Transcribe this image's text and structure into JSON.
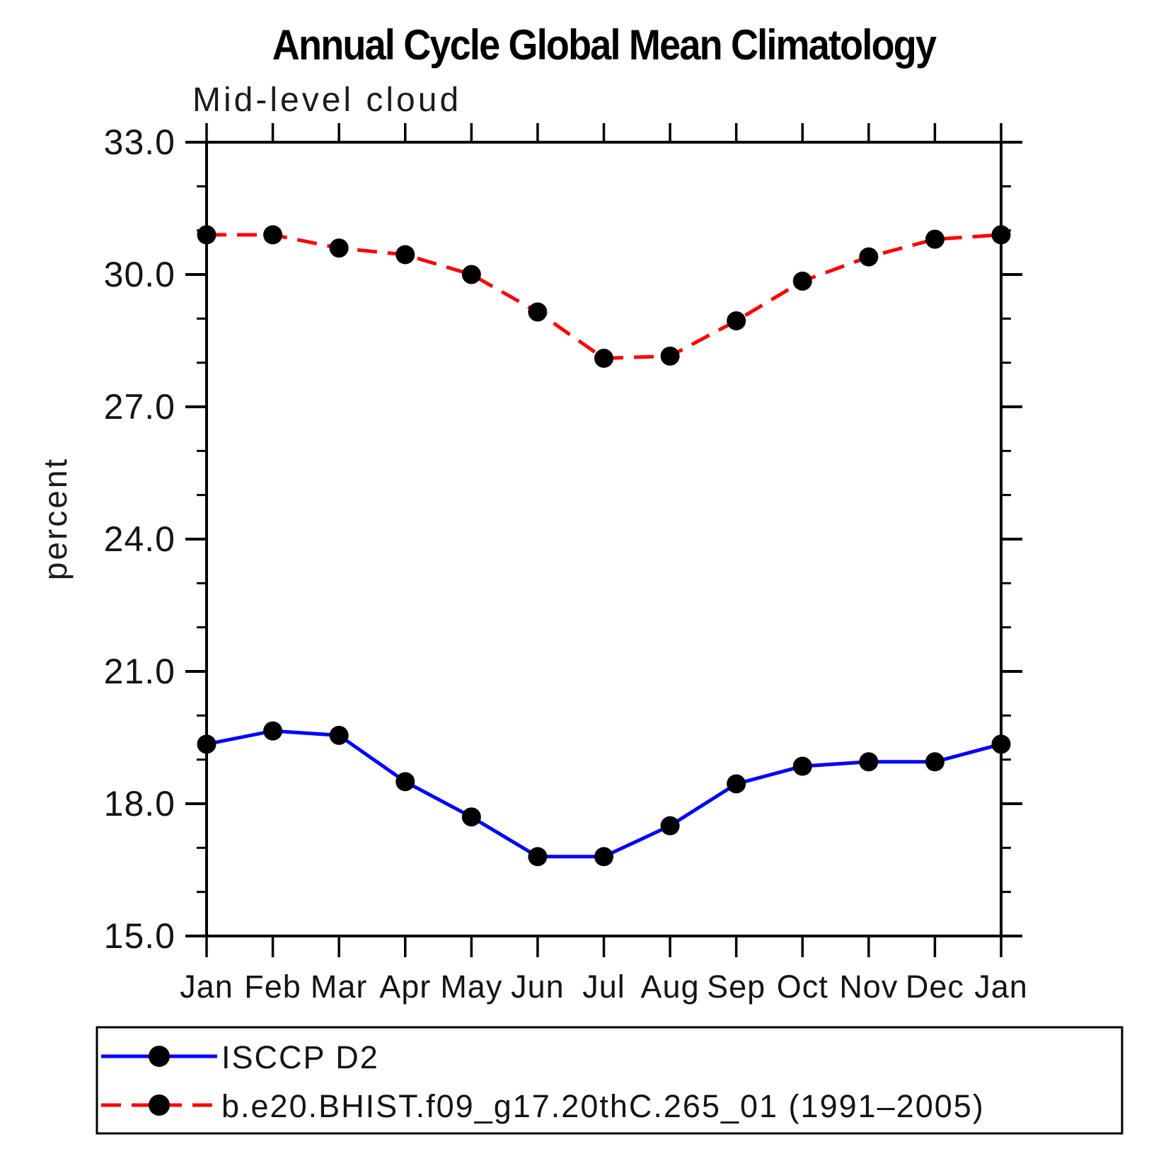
{
  "chart_data": {
    "type": "line",
    "title": "Annual Cycle Global Mean Climatology",
    "subtitle": "Mid-level cloud",
    "xlabel": "",
    "ylabel": "percent",
    "ylim": [
      15.0,
      33.0
    ],
    "ytick_major_interval": 3.0,
    "ytick_minor_interval": 1.0,
    "ytick_labels": [
      "15.0",
      "18.0",
      "21.0",
      "24.0",
      "27.0",
      "30.0",
      "33.0"
    ],
    "categories": [
      "Jan",
      "Feb",
      "Mar",
      "Apr",
      "May",
      "Jun",
      "Jul",
      "Aug",
      "Sep",
      "Oct",
      "Nov",
      "Dec",
      "Jan"
    ],
    "grid": false,
    "legend_position": "bottom-left-box",
    "axis_color": "#000000",
    "series": [
      {
        "name": "ISCCP D2",
        "color": "#0000ff",
        "line_style": "solid",
        "marker": "filled-circle",
        "marker_color": "#000000",
        "values": [
          19.35,
          19.65,
          19.55,
          18.5,
          17.7,
          16.8,
          16.8,
          17.5,
          18.45,
          18.85,
          18.95,
          18.95,
          19.35
        ]
      },
      {
        "name": "b.e20.BHIST.f09_g17.20thC.265_01 (1991–2005)",
        "color": "#ff0000",
        "line_style": "dashed",
        "marker": "filled-circle",
        "marker_color": "#000000",
        "values": [
          30.9,
          30.9,
          30.6,
          30.45,
          30.0,
          29.15,
          28.1,
          28.15,
          28.95,
          29.85,
          30.4,
          30.8,
          30.9
        ]
      }
    ]
  }
}
